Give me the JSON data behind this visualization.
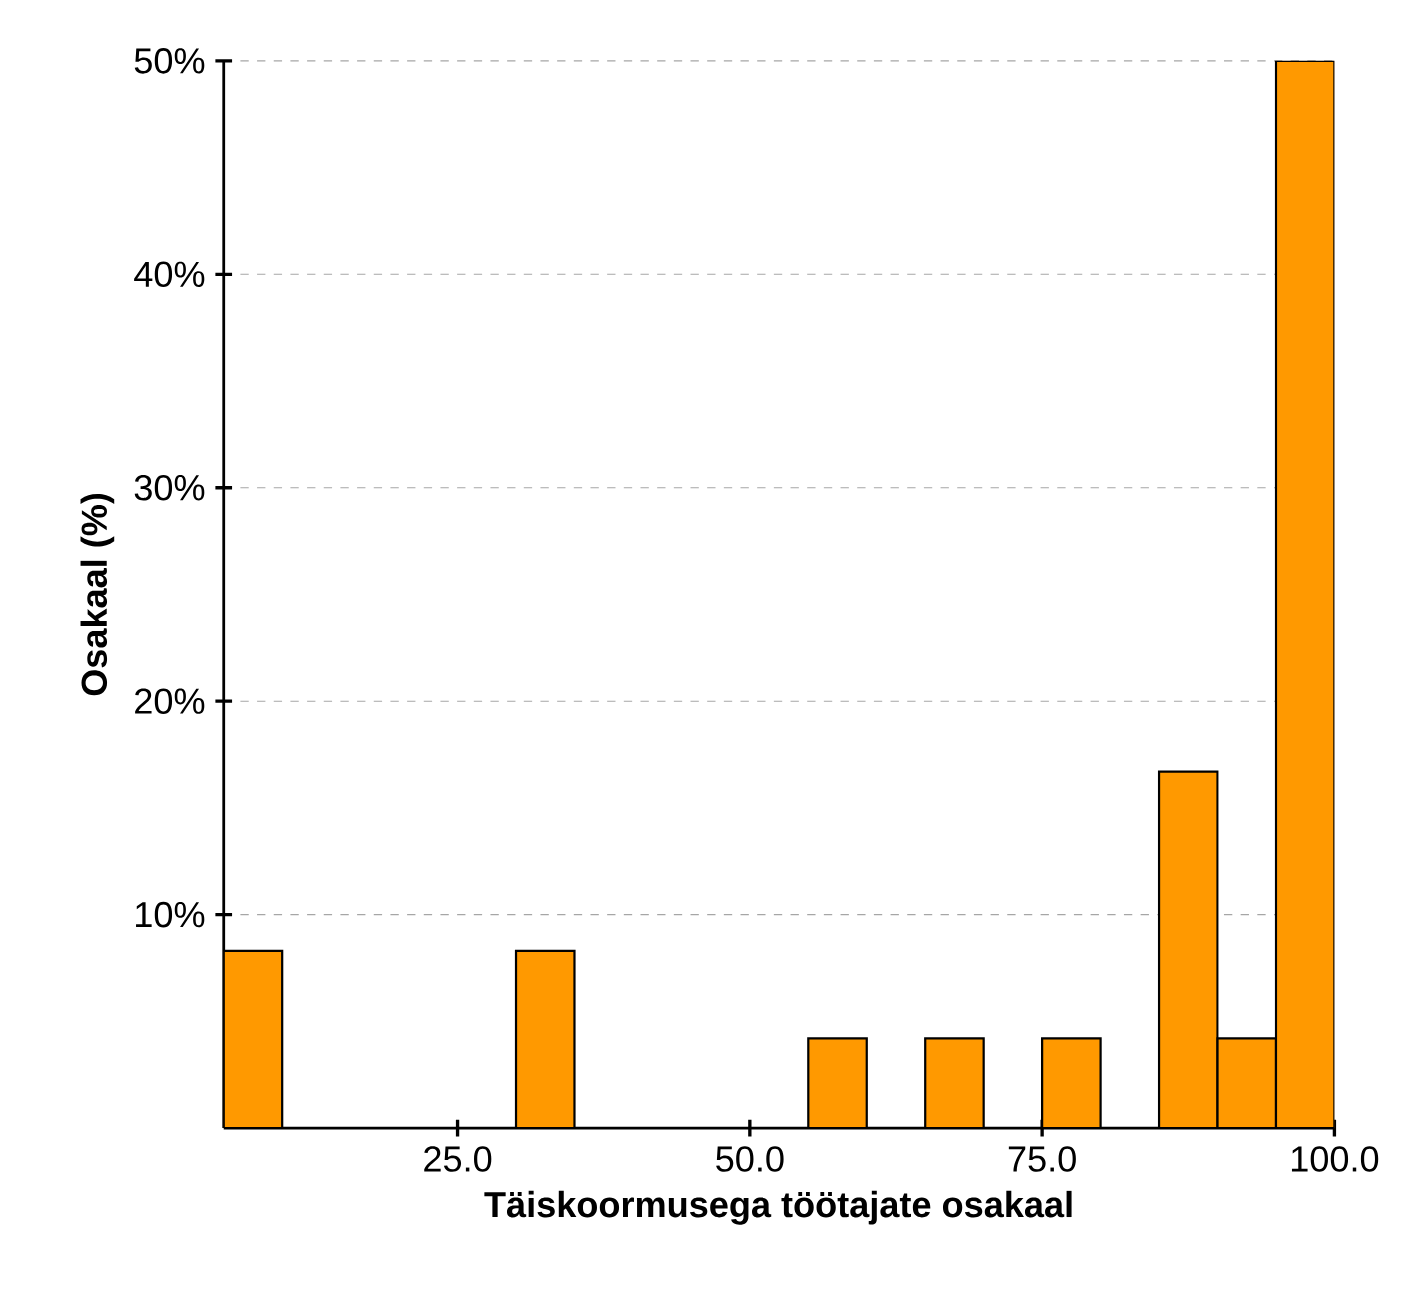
{
  "chart_data": {
    "type": "histogram",
    "xlabel": "**Täiskoormusega töötajate osakaal**",
    "ylabel": "**Osakaal (%)**",
    "bins": [
      5,
      10,
      15,
      20,
      25,
      30,
      35,
      40,
      45,
      50,
      55,
      60,
      65,
      70,
      75,
      80,
      85,
      90,
      95,
      100
    ],
    "values": [
      8.3,
      0,
      0,
      0,
      0,
      8.3,
      0,
      0,
      0,
      0,
      4.2,
      0,
      4.2,
      0,
      4.2,
      0,
      16.7,
      4.2,
      50
    ],
    "color": "#ff9900",
    "xlim": [
      5,
      100
    ],
    "xticks": [
      {
        "value": 25,
        "label": "25.0"
      },
      {
        "value": 50,
        "label": "50.0"
      },
      {
        "value": 75,
        "label": "75.0"
      },
      {
        "value": 100,
        "label": "100.0"
      }
    ],
    "ylim": [
      0,
      50
    ],
    "yticks": [
      {
        "value": 10,
        "label": "10%"
      },
      {
        "value": 20,
        "label": "20%"
      },
      {
        "value": 30,
        "label": "30%"
      },
      {
        "value": 40,
        "label": "40%"
      },
      {
        "value": 50,
        "label": "50%"
      }
    ],
    "grid": "y"
  }
}
